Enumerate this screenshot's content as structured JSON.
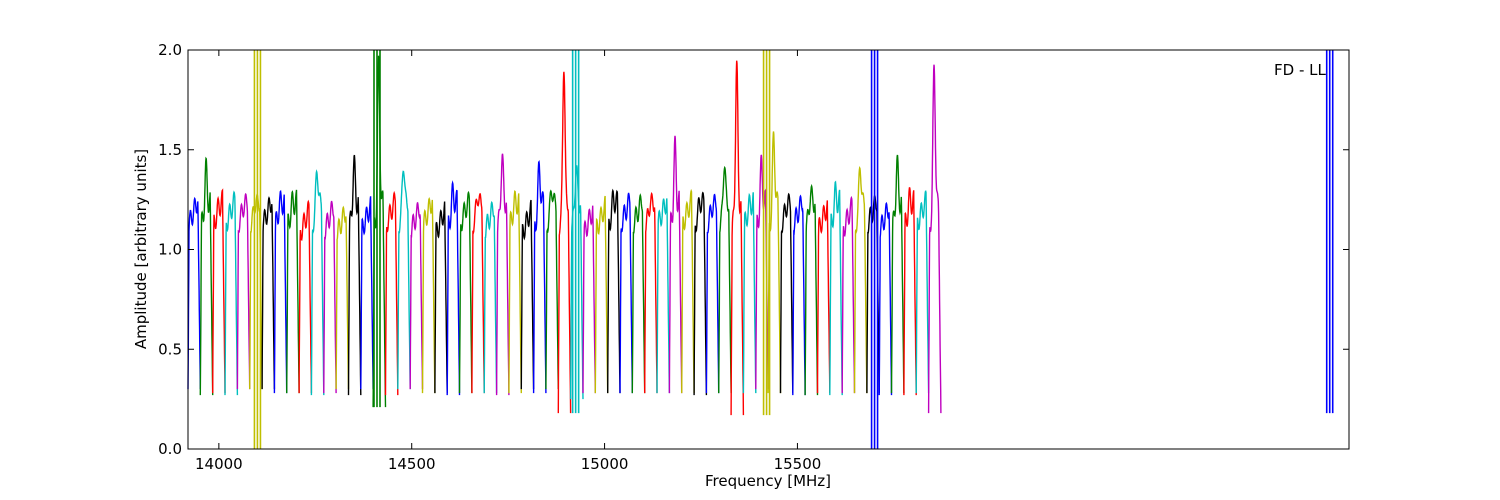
{
  "chart_data": {
    "type": "line",
    "title": "",
    "annotation": "FD - LL",
    "xlabel": "Frequency [MHz]",
    "ylabel": "Amplitude [arbitrary units]",
    "xlim": [
      13920,
      16930
    ],
    "ylim": [
      0,
      2.0
    ],
    "xticks": [
      14000,
      14500,
      15000,
      15500
    ],
    "yticks": [
      0.0,
      0.5,
      1.0,
      1.5,
      2.0
    ],
    "xtick_labels": [
      "14000",
      "14500",
      "15000",
      "15500"
    ],
    "ytick_labels": [
      "0.0",
      "0.5",
      "1.0",
      "1.5",
      "2.0"
    ],
    "grid": false,
    "legend": false,
    "series_colors": [
      "#0000ff",
      "#008000",
      "#ff0000",
      "#00bfbf",
      "#bf00bf",
      "#bfbf00",
      "#000000"
    ],
    "channel_width_mhz": 32,
    "channel_peaks": [
      1.25,
      1.47,
      1.27,
      1.25,
      1.27,
      1.3,
      1.25,
      1.3,
      1.3,
      1.2,
      1.47,
      1.22,
      1.2,
      1.5,
      1.22,
      2.0,
      1.25,
      1.5,
      1.22,
      1.25,
      1.2,
      1.35,
      1.26,
      1.33,
      1.22,
      1.53,
      1.3,
      1.2,
      1.48,
      1.37,
      2.0,
      1.48,
      1.2,
      1.22,
      1.32,
      1.25,
      1.25,
      1.3,
      1.25,
      1.58,
      1.25,
      1.3,
      1.27,
      1.5,
      2.0,
      1.28,
      1.49,
      1.64,
      1.27,
      1.25,
      1.35,
      1.22,
      1.35,
      1.22,
      1.49,
      1.25,
      1.22,
      1.5,
      1.32,
      1.25,
      2.0
    ],
    "channel_troughs": [
      0.3,
      0.27,
      0.28,
      0.27,
      0.3,
      0.3,
      0.3,
      0.28,
      0.28,
      0.28,
      0.27,
      0.28,
      0.3,
      0.27,
      0.3,
      0.21,
      0.27,
      0.3,
      0.3,
      0.28,
      0.28,
      0.27,
      0.28,
      0.28,
      0.28,
      0.27,
      0.28,
      0.3,
      0.28,
      0.3,
      0.18,
      0.25,
      0.28,
      0.28,
      0.28,
      0.28,
      0.28,
      0.28,
      0.28,
      0.28,
      0.28,
      0.27,
      0.28,
      0.28,
      0.17,
      0.28,
      0.3,
      0.28,
      0.28,
      0.27,
      0.27,
      0.28,
      0.27,
      0.28,
      0.28,
      0.28,
      0.27,
      0.28,
      0.27,
      0.28,
      0.18
    ],
    "rfi_spikes": [
      {
        "x": 14100,
        "ymin": 0.0,
        "ymax": 2.0,
        "color": "#bfbf00"
      },
      {
        "x": 14410,
        "ymin": 0.21,
        "ymax": 2.0,
        "color": "#008000"
      },
      {
        "x": 14925,
        "ymin": 0.18,
        "ymax": 2.0,
        "color": "#00bfbf"
      },
      {
        "x": 15420,
        "ymin": 0.17,
        "ymax": 2.0,
        "color": "#bfbf00"
      },
      {
        "x": 15700,
        "ymin": 0.0,
        "ymax": 2.0,
        "color": "#0000ff"
      },
      {
        "x": 16880,
        "ymin": 0.18,
        "ymax": 2.0,
        "color": "#0000ff"
      }
    ]
  }
}
